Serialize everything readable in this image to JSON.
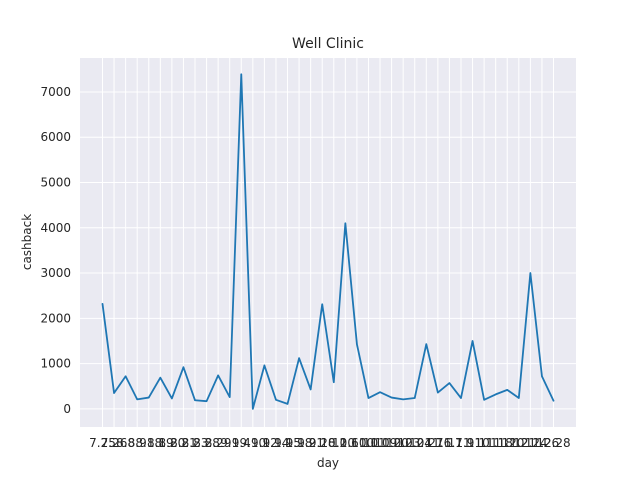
{
  "chart_data": {
    "type": "line",
    "title": "Well Clinic",
    "xlabel": "day",
    "ylabel": "cashback",
    "ylim": [
      -400,
      7750
    ],
    "yticks": [
      0,
      1000,
      2000,
      3000,
      4000,
      5000,
      6000,
      7000
    ],
    "grid": true,
    "line_color": "#1f77b4",
    "background_color": "#eaeaf2",
    "categories": [
      "7.25",
      "7.26",
      "8.8",
      "8.9",
      "8.18",
      "8.19",
      "8.20",
      "8.21",
      "8.23",
      "8.28",
      "8.29",
      "9.1",
      "9.4",
      "9.10",
      "9.12",
      "9.14",
      "9.15",
      "9.18",
      "9.21",
      "9.28",
      "10.2",
      "10.6",
      "10.10",
      "10.11",
      "10.19",
      "10.20",
      "10.23",
      "10.24",
      "10.27",
      "11.6",
      "11.7",
      "11.9",
      "11.10",
      "11.11",
      "11.18",
      "11.20",
      "11.21",
      "12.14",
      "12.26",
      "12.28"
    ],
    "series": [
      {
        "values": [
          2320,
          350,
          720,
          210,
          250,
          690,
          230,
          920,
          190,
          170,
          740,
          260,
          7390,
          0,
          960,
          200,
          110,
          1120,
          430,
          2310,
          590,
          4100,
          1430,
          240,
          370,
          250,
          210,
          240,
          1430,
          360,
          570,
          240,
          1500,
          200,
          320,
          420,
          240,
          3000,
          720,
          180
        ]
      }
    ]
  }
}
